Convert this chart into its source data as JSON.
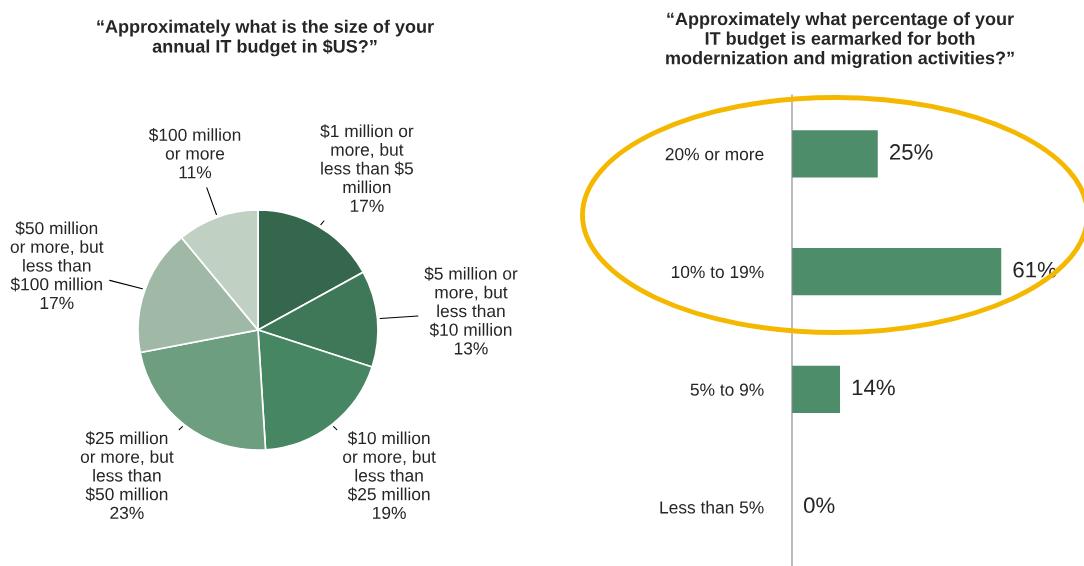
{
  "chart_data": [
    {
      "type": "pie",
      "title": "“Approximately what is the size of your\nannual IT budget in $US?”",
      "categories": [
        "$1 million or\nmore, but\nless than $5\nmillion",
        "$5 million or\nmore, but\nless than\n$10 million",
        "$10 million\nor more, but\nless than\n$25 million",
        "$25 million\nor more, but\nless than\n$50 million",
        "$50 million\nor more, but\nless than\n$100 million",
        "$100 million\nor more"
      ],
      "values": [
        17,
        13,
        19,
        23,
        17,
        11
      ],
      "value_labels": [
        "17%",
        "13%",
        "19%",
        "23%",
        "17%",
        "11%"
      ],
      "colors": [
        "#35674d",
        "#3f7858",
        "#468663",
        "#6d9e80",
        "#a0b9a6",
        "#c0d1c4"
      ]
    },
    {
      "type": "bar",
      "orientation": "horizontal",
      "title": "“Approximately what percentage of your\nIT budget is earmarked for both\nmodernization and migration activities?”",
      "categories": [
        "20% or more",
        "10% to 19%",
        "5% to 9%",
        "Less than 5%"
      ],
      "values": [
        25,
        61,
        14,
        0
      ],
      "value_labels": [
        "25%",
        "61%",
        "14%",
        "0%"
      ],
      "color": "#4d8d69",
      "tick_labels": "y"
    }
  ]
}
